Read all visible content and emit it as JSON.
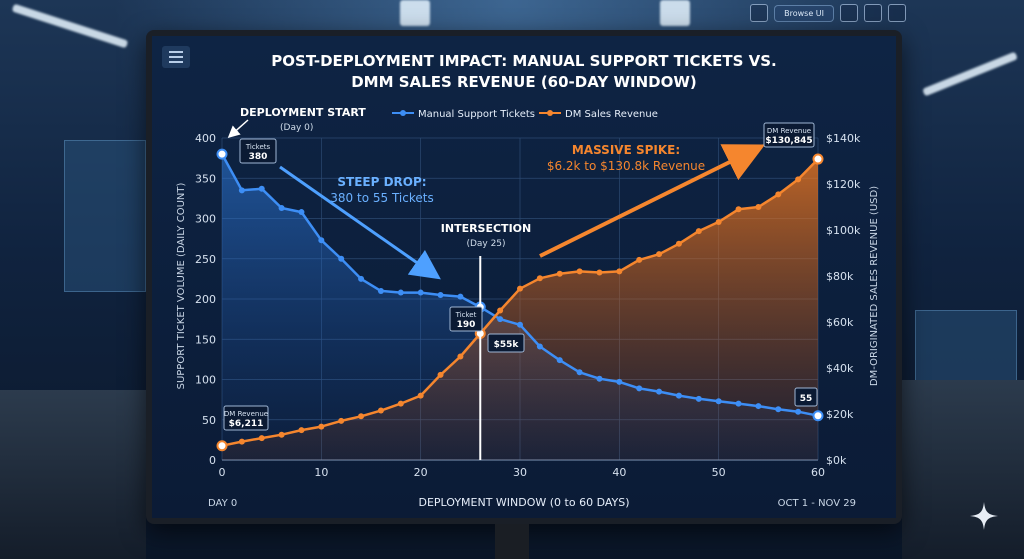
{
  "browser": {
    "browse_label": "Browse UI"
  },
  "chart_data": {
    "type": "line",
    "title": "POST-DEPLOYMENT IMPACT: MANUAL SUPPORT TICKETS VS.",
    "subtitle": "DMM SALES REVENUE (60-DAY WINDOW)",
    "xlabel": "DEPLOYMENT WINDOW (0 to 60 DAYS)",
    "ylabel_left": "SUPPORT TICKET VOLUME (DAILY COUNT)",
    "ylabel_right": "DM-ORIGINATED SALES REVENUE (USD)",
    "x_start_label": "DAY 0",
    "x_end_label": "OCT 1 - NOV 29",
    "xlim": [
      0,
      60
    ],
    "ylim_left": [
      0,
      400
    ],
    "ylim_right": [
      0,
      140000
    ],
    "x_ticks": [
      "0",
      "10",
      "20",
      "30",
      "40",
      "50",
      "60"
    ],
    "y_left_ticks": [
      "0",
      "50",
      "100",
      "150",
      "200",
      "250",
      "300",
      "350",
      "400"
    ],
    "y_right_ticks": [
      "$0k",
      "$20k",
      "$40k",
      "$60k",
      "$80k",
      "$100k",
      "$120k",
      "$140k"
    ],
    "grid": true,
    "legend_position": "top",
    "series": [
      {
        "name": "Manual Support Tickets",
        "axis": "left",
        "color": "#3d8ef5",
        "x": [
          0,
          2,
          4,
          6,
          8,
          10,
          12,
          14,
          16,
          18,
          20,
          22,
          24,
          26,
          28,
          30,
          32,
          34,
          36,
          38,
          40,
          42,
          44,
          46,
          48,
          50,
          52,
          54,
          56,
          58,
          60
        ],
        "values": [
          380,
          335,
          337,
          313,
          308,
          273,
          250,
          225,
          210,
          208,
          208,
          205,
          203,
          190,
          175,
          168,
          141,
          124,
          109,
          101,
          97,
          89,
          85,
          80,
          76,
          73,
          70,
          67,
          63,
          60,
          55
        ]
      },
      {
        "name": "DM Sales Revenue",
        "axis": "right",
        "color": "#f5862e",
        "x": [
          0,
          2,
          4,
          6,
          8,
          10,
          12,
          14,
          16,
          18,
          20,
          22,
          24,
          26,
          28,
          30,
          32,
          34,
          36,
          38,
          40,
          42,
          44,
          46,
          48,
          50,
          52,
          54,
          56,
          58,
          60
        ],
        "values": [
          6211,
          8000,
          9500,
          11000,
          13000,
          14500,
          17000,
          19000,
          21500,
          24500,
          28000,
          37000,
          45000,
          55000,
          65000,
          74500,
          79000,
          81000,
          82000,
          81500,
          82000,
          87000,
          89500,
          94000,
          99500,
          103500,
          109000,
          110000,
          115500,
          122000,
          130845
        ]
      }
    ],
    "annotations": {
      "deployment_start": {
        "title": "DEPLOYMENT START",
        "sub": "(Day 0)"
      },
      "tickets_start": {
        "label": "Tickets",
        "value": "380"
      },
      "revenue_start": {
        "label": "DM Revenue",
        "value": "$6,211"
      },
      "steep_drop": {
        "title": "STEEP DROP:",
        "sub": "380 to 55 Tickets"
      },
      "intersection": {
        "title": "INTERSECTION",
        "sub": "(Day 25)",
        "x": 26
      },
      "tickets_mid": {
        "label": "Ticket",
        "value": "190"
      },
      "revenue_mid": {
        "value": "$55k"
      },
      "spike": {
        "title": "MASSIVE SPIKE:",
        "sub": "$6.2k to $130.8k Revenue"
      },
      "revenue_end": {
        "label": "DM Revenue",
        "value": "$130,845"
      },
      "tickets_end": {
        "value": "55"
      }
    }
  }
}
